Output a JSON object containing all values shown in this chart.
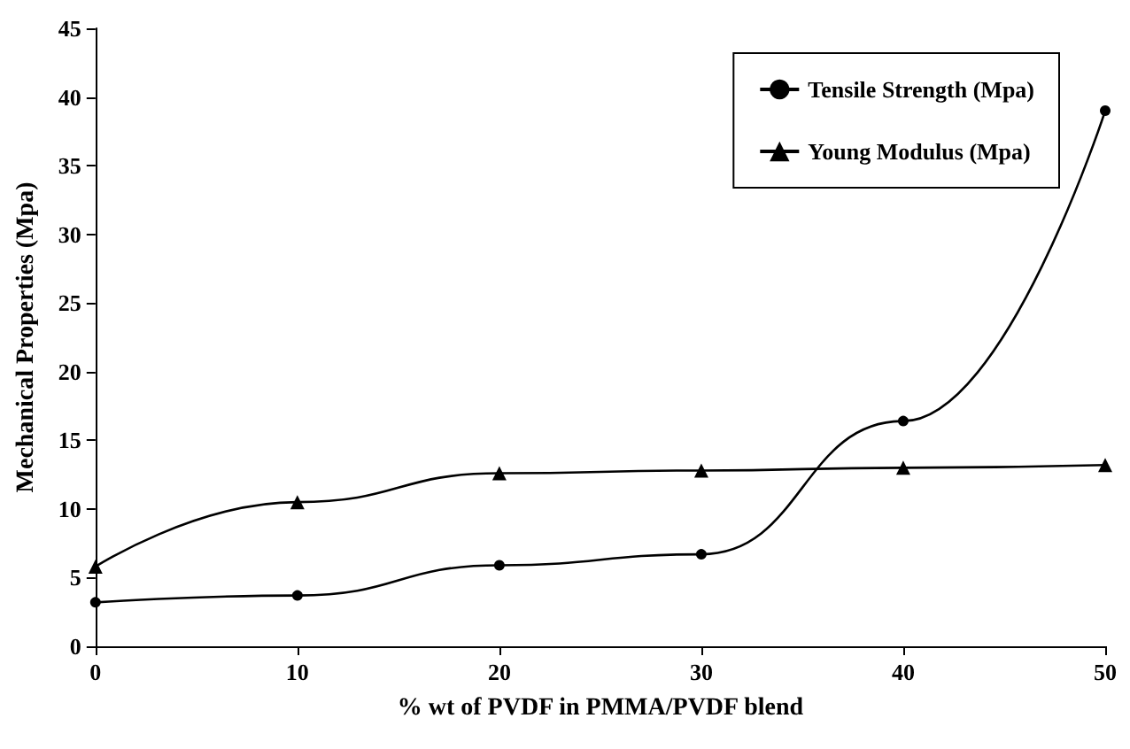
{
  "chart_data": {
    "type": "line",
    "xlabel": "% wt of PVDF in PMMA/PVDF blend",
    "ylabel": "Mechanical Properties (Mpa)",
    "x": [
      0,
      10,
      20,
      30,
      40,
      50
    ],
    "series": [
      {
        "name": "Tensile Strength (Mpa)",
        "color": "#000000",
        "marker": "circle",
        "values": [
          3.2,
          3.7,
          5.9,
          6.7,
          16.4,
          39
        ]
      },
      {
        "name": "Young Modulus (Mpa)",
        "color": "#000000",
        "marker": "triangle",
        "values": [
          5.8,
          10.5,
          12.6,
          12.8,
          13.0,
          13.2
        ]
      }
    ],
    "xlim": [
      0,
      50
    ],
    "xticks": [
      0,
      10,
      20,
      30,
      40,
      50
    ],
    "ylim": [
      0,
      45
    ],
    "yticks": [
      0,
      5,
      10,
      15,
      20,
      25,
      30,
      35,
      40,
      45
    ],
    "grid": false,
    "legend": "top right",
    "line_style": "solid"
  }
}
